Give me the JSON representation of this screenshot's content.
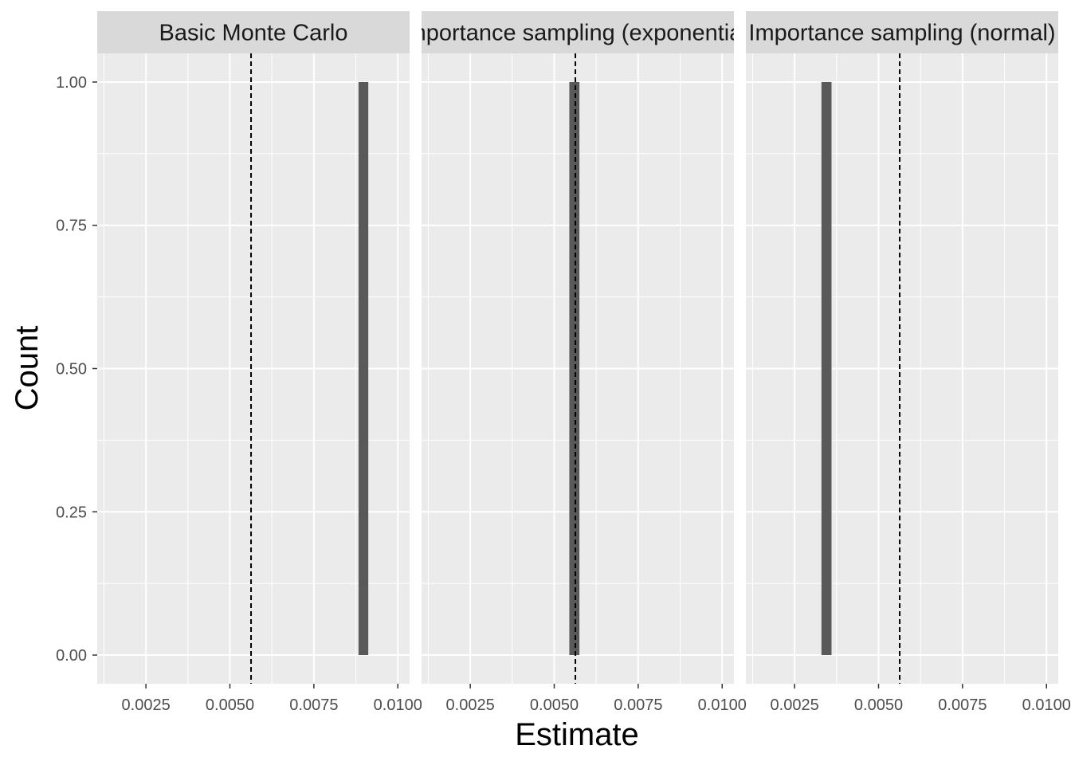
{
  "chart_data": {
    "type": "bar",
    "xlabel": "Estimate",
    "ylabel": "Count",
    "xlim": [
      0.00105,
      0.01035
    ],
    "ylim": [
      -0.05,
      1.05
    ],
    "x_ticks": [
      0.0025,
      0.005,
      0.0075,
      0.01
    ],
    "x_tick_labels": [
      "0.0025",
      "0.0050",
      "0.0075",
      "0.0100"
    ],
    "y_ticks": [
      0,
      0.25,
      0.5,
      0.75,
      1
    ],
    "y_tick_labels": [
      "0.00",
      "0.25",
      "0.50",
      "0.75",
      "1.00"
    ],
    "reference_line_x": 0.00563,
    "grid": true,
    "colors": {
      "panel_bg": "#ebebeb",
      "grid": "#ffffff",
      "strip_bg": "#d9d9d9",
      "bar": "#595959",
      "reference_line": "#000000"
    },
    "panels": [
      {
        "label": "Basic Monte Carlo",
        "bar": {
          "xmin": 0.00883,
          "xmax": 0.00912,
          "count": 1
        }
      },
      {
        "label": "Importance sampling (exponential)",
        "bar": {
          "xmin": 0.00545,
          "xmax": 0.00575,
          "count": 1
        }
      },
      {
        "label": "Importance sampling (normal)",
        "bar": {
          "xmin": 0.0033,
          "xmax": 0.0036,
          "count": 1
        }
      }
    ]
  }
}
